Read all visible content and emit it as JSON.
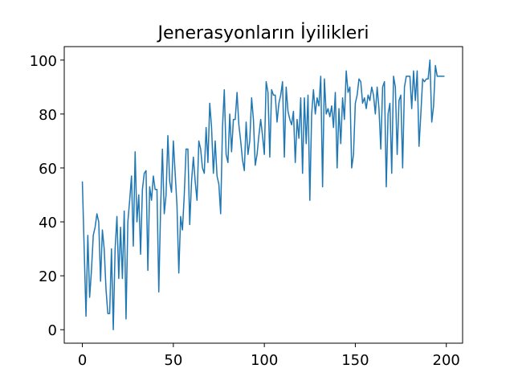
{
  "chart_data": {
    "type": "line",
    "title": "Jenerasyonların İyilikleri",
    "x": [
      0,
      1,
      2,
      3,
      4,
      5,
      6,
      7,
      8,
      9,
      10,
      11,
      12,
      13,
      14,
      15,
      16,
      17,
      18,
      19,
      20,
      21,
      22,
      23,
      24,
      25,
      26,
      27,
      28,
      29,
      30,
      31,
      32,
      33,
      34,
      35,
      36,
      37,
      38,
      39,
      40,
      41,
      42,
      43,
      44,
      45,
      46,
      47,
      48,
      49,
      50,
      51,
      52,
      53,
      54,
      55,
      56,
      57,
      58,
      59,
      60,
      61,
      62,
      63,
      64,
      65,
      66,
      67,
      68,
      69,
      70,
      71,
      72,
      73,
      74,
      75,
      76,
      77,
      78,
      79,
      80,
      81,
      82,
      83,
      84,
      85,
      86,
      87,
      88,
      89,
      90,
      91,
      92,
      93,
      94,
      95,
      96,
      97,
      98,
      99,
      100,
      101,
      102,
      103,
      104,
      105,
      106,
      107,
      108,
      109,
      110,
      111,
      112,
      113,
      114,
      115,
      116,
      117,
      118,
      119,
      120,
      121,
      122,
      123,
      124,
      125,
      126,
      127,
      128,
      129,
      130,
      131,
      132,
      133,
      134,
      135,
      136,
      137,
      138,
      139,
      140,
      141,
      142,
      143,
      144,
      145,
      146,
      147,
      148,
      149,
      150,
      151,
      152,
      153,
      154,
      155,
      156,
      157,
      158,
      159,
      160,
      161,
      162,
      163,
      164,
      165,
      166,
      167,
      168,
      169,
      170,
      171,
      172,
      173,
      174,
      175,
      176,
      177,
      178,
      179,
      180,
      181,
      182,
      183,
      184,
      185,
      186,
      187,
      188,
      189,
      190,
      191,
      192,
      193,
      194,
      195,
      196,
      197,
      198,
      199
    ],
    "series": [
      {
        "color": "#1f77b4",
        "values": [
          55,
          30,
          5,
          35,
          12,
          22,
          35,
          38,
          43,
          40,
          18,
          37,
          30,
          15,
          6,
          6,
          30,
          0,
          30,
          42,
          19,
          38,
          19,
          44,
          4,
          40,
          48,
          57,
          31,
          66,
          40,
          50,
          28,
          52,
          58,
          59,
          22,
          53,
          48,
          57,
          52,
          52,
          14,
          45,
          67,
          43,
          50,
          72,
          55,
          51,
          70,
          58,
          46,
          21,
          42,
          37,
          50,
          67,
          67,
          39,
          55,
          64,
          55,
          48,
          70,
          67,
          60,
          58,
          75,
          62,
          84,
          75,
          58,
          70,
          57,
          54,
          43,
          75,
          89,
          65,
          62,
          80,
          66,
          78,
          78,
          88,
          76,
          70,
          63,
          59,
          77,
          65,
          70,
          86,
          78,
          61,
          65,
          72,
          78,
          72,
          65,
          92,
          88,
          64,
          89,
          87,
          87,
          77,
          84,
          87,
          92,
          64,
          90,
          81,
          78,
          76,
          81,
          62,
          78,
          71,
          86,
          58,
          86,
          69,
          87,
          48,
          80,
          89,
          80,
          86,
          83,
          94,
          53,
          93,
          80,
          82,
          79,
          83,
          75,
          88,
          60,
          82,
          69,
          86,
          78,
          96,
          88,
          90,
          60,
          65,
          84,
          87,
          93,
          92,
          84,
          86,
          82,
          87,
          85,
          90,
          87,
          80,
          90,
          82,
          67,
          90,
          92,
          53,
          80,
          84,
          58,
          94,
          90,
          65,
          85,
          87,
          60,
          90,
          94,
          94,
          94,
          82,
          96,
          85,
          96,
          68,
          80,
          93,
          92,
          93,
          93,
          100,
          77,
          83,
          98,
          94,
          94,
          94,
          94,
          94
        ]
      }
    ],
    "xlim": [
      -9.95,
      208.95
    ],
    "ylim": [
      -5,
      105
    ],
    "xticks": [
      0,
      50,
      100,
      150,
      200
    ],
    "yticks": [
      0,
      20,
      40,
      60,
      80,
      100
    ]
  }
}
